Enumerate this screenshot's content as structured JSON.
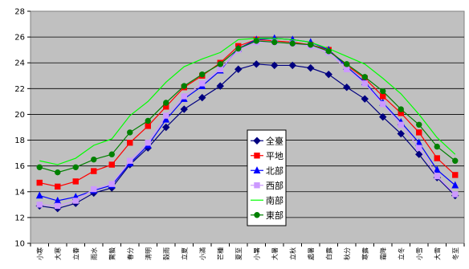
{
  "chart_data": {
    "type": "line",
    "title": "",
    "xlabel": "",
    "ylabel": "",
    "ylim": [
      10,
      28
    ],
    "yticks": [
      10,
      12,
      14,
      16,
      18,
      20,
      22,
      24,
      26,
      28
    ],
    "grid": "horizontal",
    "plot_background": "#c0c0c0",
    "legend_position": "center-right",
    "categories": [
      "小寒",
      "大寒",
      "立春",
      "雨水",
      "驚蟄",
      "春分",
      "清明",
      "穀雨",
      "立夏",
      "小滿",
      "芒種",
      "夏至",
      "小暑",
      "大暑",
      "立秋",
      "處暑",
      "白露",
      "秋分",
      "寒露",
      "霜降",
      "立冬",
      "小雪",
      "大雪",
      "冬至"
    ],
    "series": [
      {
        "name": "全臺",
        "color": "#000080",
        "marker": "diamond",
        "values": [
          12.9,
          12.7,
          13.1,
          13.9,
          14.3,
          16.1,
          17.4,
          19.0,
          20.4,
          21.3,
          22.2,
          23.5,
          23.9,
          23.8,
          23.8,
          23.6,
          23.1,
          22.1,
          21.2,
          19.8,
          18.5,
          16.9,
          15.1,
          13.7
        ]
      },
      {
        "name": "平地",
        "color": "#ff0000",
        "marker": "square",
        "values": [
          14.7,
          14.4,
          14.8,
          15.6,
          16.1,
          17.8,
          19.1,
          20.6,
          22.1,
          23.0,
          24.0,
          25.3,
          25.8,
          25.7,
          25.6,
          25.4,
          25.0,
          23.8,
          22.8,
          21.4,
          20.1,
          18.6,
          16.6,
          15.3
        ]
      },
      {
        "name": "北部",
        "color": "#0000ff",
        "marker": "triangle",
        "values": [
          13.7,
          13.3,
          13.6,
          14.1,
          14.5,
          16.2,
          17.6,
          19.6,
          21.2,
          22.2,
          23.4,
          25.1,
          25.8,
          25.9,
          25.8,
          25.6,
          25.0,
          23.7,
          22.5,
          20.9,
          19.4,
          17.8,
          15.7,
          14.5
        ]
      },
      {
        "name": "西部",
        "color": "#cc99ff",
        "marker": "square",
        "values": [
          13.0,
          12.9,
          13.3,
          14.2,
          14.6,
          16.4,
          17.8,
          19.9,
          21.4,
          22.4,
          23.5,
          25.0,
          25.6,
          25.6,
          25.5,
          25.3,
          24.8,
          23.5,
          22.4,
          20.8,
          19.2,
          17.4,
          15.2,
          13.8
        ]
      },
      {
        "name": "南部",
        "color": "#00ff00",
        "marker": "none",
        "values": [
          16.4,
          16.1,
          16.6,
          17.6,
          18.1,
          19.9,
          21.0,
          22.5,
          23.7,
          24.3,
          24.8,
          25.8,
          25.9,
          25.9,
          25.8,
          25.6,
          25.1,
          24.5,
          23.9,
          22.8,
          21.6,
          20.0,
          18.2,
          16.9
        ]
      },
      {
        "name": "東部",
        "color": "#008000",
        "marker": "circle",
        "values": [
          15.9,
          15.5,
          15.9,
          16.5,
          16.9,
          18.6,
          19.5,
          20.9,
          22.2,
          23.1,
          23.9,
          25.1,
          25.7,
          25.6,
          25.5,
          25.4,
          24.9,
          23.9,
          22.9,
          21.8,
          20.4,
          19.2,
          17.5,
          16.4
        ]
      }
    ]
  }
}
